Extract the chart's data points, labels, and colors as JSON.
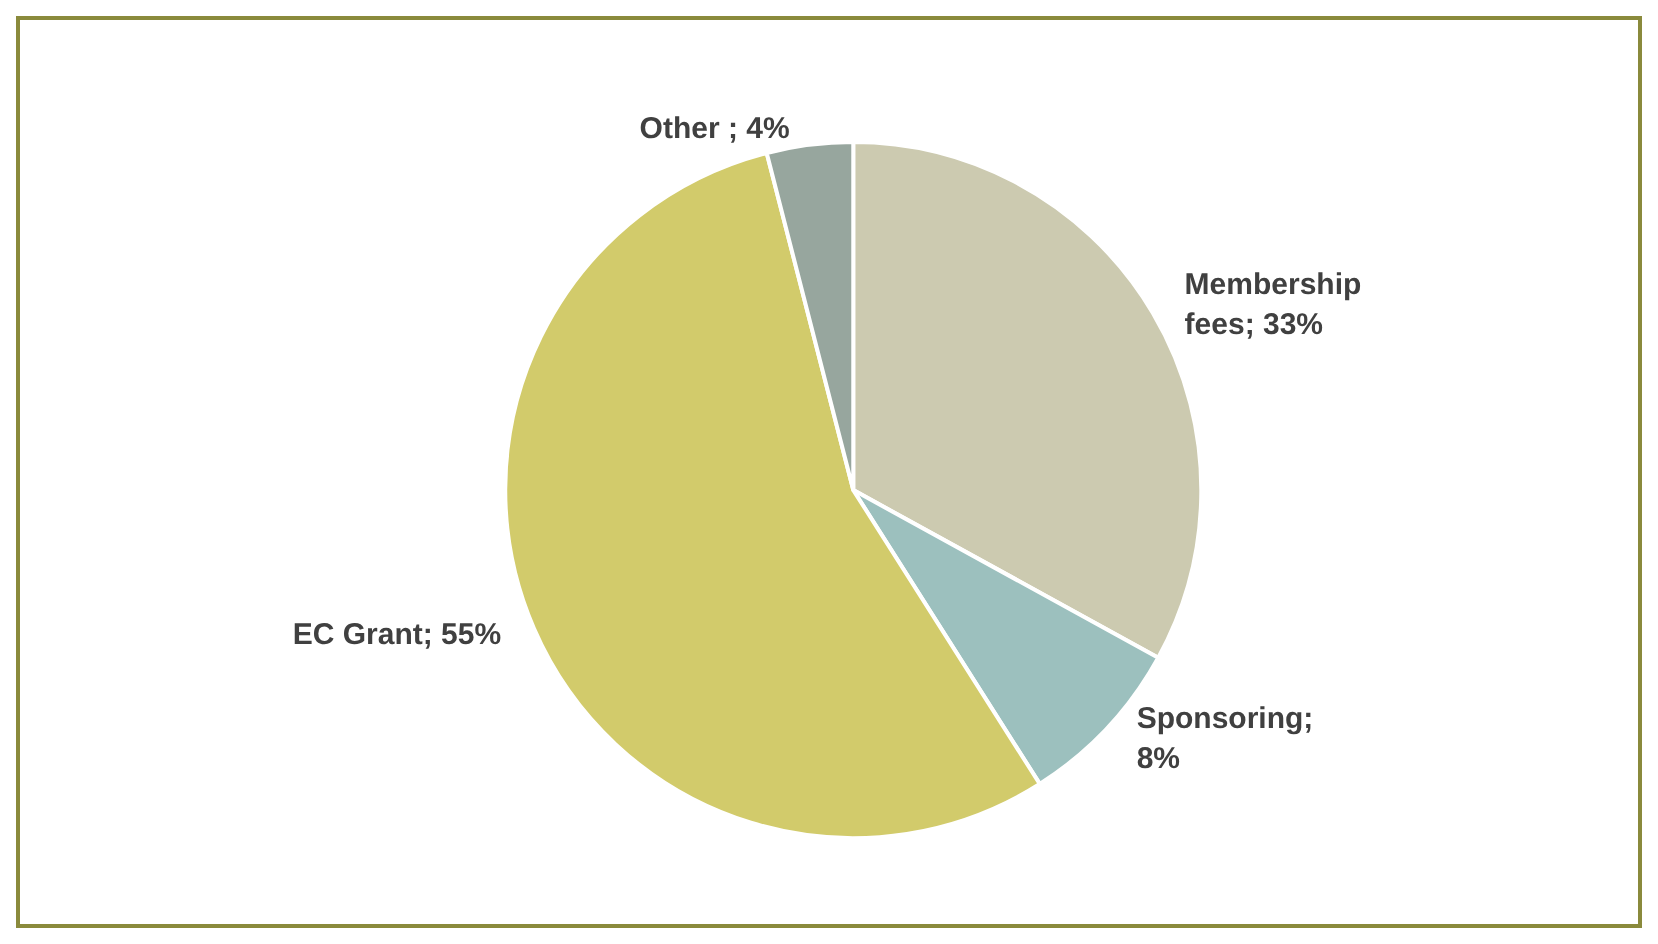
{
  "chart_data": {
    "type": "pie",
    "categories": [
      "Membership fees",
      "Sponsoring",
      "EC Grant",
      "Other"
    ],
    "values": [
      33,
      8,
      55,
      4
    ],
    "colors": [
      "#cccab0",
      "#9cc0be",
      "#d2cb6b",
      "#97a69e"
    ],
    "value_labels": [
      "; 33%",
      "; 8%",
      "; 55%",
      " ; 4%"
    ],
    "legend": false
  }
}
